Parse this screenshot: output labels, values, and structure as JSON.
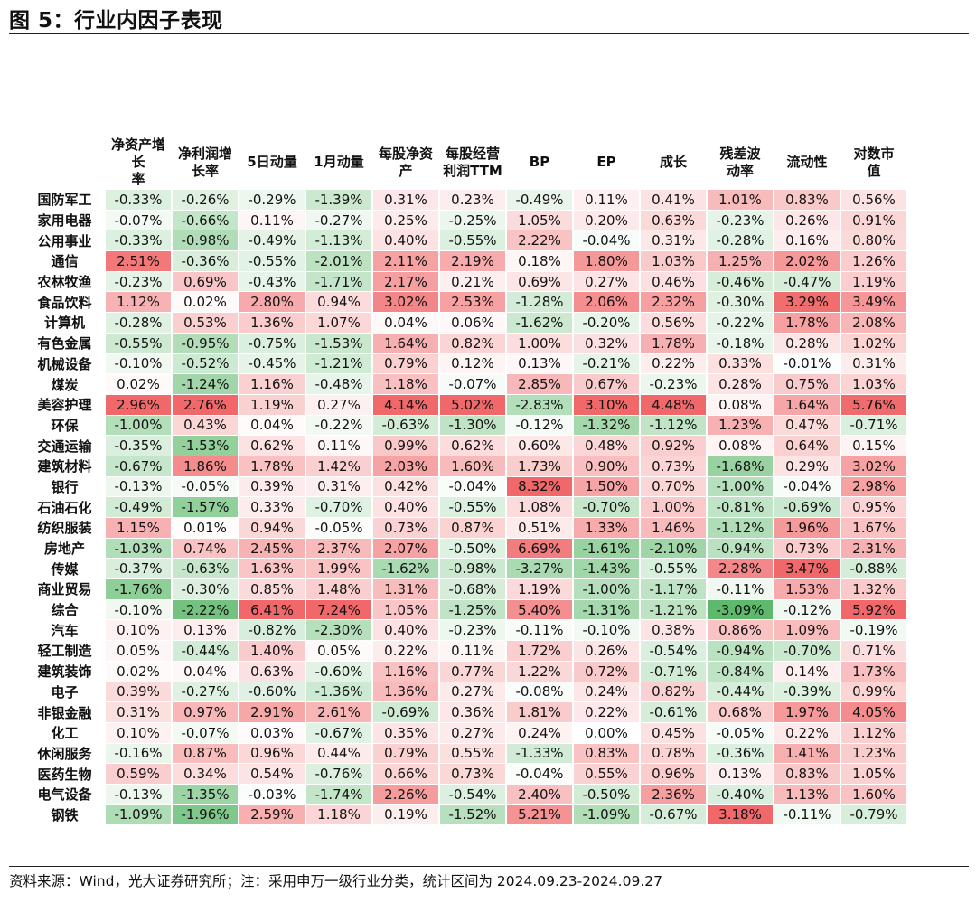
{
  "title": "图 5：行业内因子表现",
  "source": "资料来源：Wind，光大证券研究所；注：采用申万一级行业分类，统计区间为 2024.09.23-2024.09.27",
  "chart_data": {
    "type": "heatmap",
    "columns": [
      [
        "净资产增长",
        "率"
      ],
      [
        "净利润增",
        "长率"
      ],
      [
        "5日动量"
      ],
      [
        "1月动量"
      ],
      [
        "每股净资",
        "产"
      ],
      [
        "每股经营",
        "利润TTM"
      ],
      [
        "BP"
      ],
      [
        "EP"
      ],
      [
        "成长"
      ],
      [
        "残差波",
        "动率"
      ],
      [
        "流动性"
      ],
      [
        "对数市",
        "值"
      ]
    ],
    "value_suffix": "%",
    "rows": [
      {
        "name": "国防军工",
        "values": [
          -0.33,
          -0.26,
          -0.29,
          -1.39,
          0.31,
          0.23,
          -0.49,
          0.11,
          0.41,
          1.01,
          0.83,
          0.56
        ]
      },
      {
        "name": "家用电器",
        "values": [
          -0.07,
          -0.66,
          0.11,
          -0.27,
          0.25,
          -0.25,
          1.05,
          0.2,
          0.63,
          -0.23,
          0.26,
          0.91
        ]
      },
      {
        "name": "公用事业",
        "values": [
          -0.33,
          -0.98,
          -0.49,
          -1.13,
          0.4,
          -0.55,
          2.22,
          -0.04,
          0.31,
          -0.28,
          0.16,
          0.8
        ]
      },
      {
        "name": "通信",
        "values": [
          2.51,
          -0.36,
          -0.55,
          -2.01,
          2.11,
          2.19,
          0.18,
          1.8,
          1.03,
          1.25,
          2.02,
          1.26
        ]
      },
      {
        "name": "农林牧渔",
        "values": [
          -0.23,
          0.69,
          -0.43,
          -1.71,
          2.17,
          0.21,
          0.69,
          0.27,
          0.46,
          -0.46,
          -0.47,
          1.19
        ]
      },
      {
        "name": "食品饮料",
        "values": [
          1.12,
          0.02,
          2.8,
          0.94,
          3.02,
          2.53,
          -1.28,
          2.06,
          2.32,
          -0.3,
          3.29,
          3.49
        ]
      },
      {
        "name": "计算机",
        "values": [
          -0.28,
          0.53,
          1.36,
          1.07,
          0.04,
          0.06,
          -1.62,
          -0.2,
          0.56,
          -0.22,
          1.78,
          2.08
        ]
      },
      {
        "name": "有色金属",
        "values": [
          -0.55,
          -0.95,
          -0.75,
          -1.53,
          1.64,
          0.82,
          1.0,
          0.32,
          1.78,
          -0.18,
          0.28,
          1.02
        ]
      },
      {
        "name": "机械设备",
        "values": [
          -0.1,
          -0.52,
          -0.45,
          -1.21,
          0.79,
          0.12,
          0.13,
          -0.21,
          0.22,
          0.33,
          -0.01,
          0.31
        ]
      },
      {
        "name": "煤炭",
        "values": [
          0.02,
          -1.24,
          1.16,
          -0.48,
          1.18,
          -0.07,
          2.85,
          0.67,
          -0.23,
          0.28,
          0.75,
          1.03
        ]
      },
      {
        "name": "美容护理",
        "values": [
          2.96,
          2.76,
          1.19,
          0.27,
          4.14,
          5.02,
          -2.83,
          3.1,
          4.48,
          0.08,
          1.64,
          5.76
        ]
      },
      {
        "name": "环保",
        "values": [
          -1.0,
          0.43,
          0.04,
          -0.22,
          -0.63,
          -1.3,
          -0.12,
          -1.32,
          -1.12,
          1.23,
          0.47,
          -0.71
        ]
      },
      {
        "name": "交通运输",
        "values": [
          -0.35,
          -1.53,
          0.62,
          0.11,
          0.99,
          0.62,
          0.6,
          0.48,
          0.92,
          0.08,
          0.64,
          0.15
        ]
      },
      {
        "name": "建筑材料",
        "values": [
          -0.67,
          1.86,
          1.78,
          1.42,
          2.03,
          1.6,
          1.73,
          0.9,
          0.73,
          -1.68,
          0.29,
          3.02
        ]
      },
      {
        "name": "银行",
        "values": [
          -0.13,
          -0.05,
          0.39,
          0.31,
          0.42,
          -0.04,
          8.32,
          1.5,
          0.7,
          -1.0,
          -0.04,
          2.98
        ]
      },
      {
        "name": "石油石化",
        "values": [
          -0.49,
          -1.57,
          0.33,
          -0.7,
          0.4,
          -0.55,
          1.08,
          -0.7,
          1.0,
          -0.81,
          -0.69,
          0.95
        ]
      },
      {
        "name": "纺织服装",
        "values": [
          1.15,
          0.01,
          0.94,
          -0.05,
          0.73,
          0.87,
          0.51,
          1.33,
          1.46,
          -1.12,
          1.96,
          1.67
        ]
      },
      {
        "name": "房地产",
        "values": [
          -1.03,
          0.74,
          2.45,
          2.37,
          2.07,
          -0.5,
          6.69,
          -1.61,
          -2.1,
          -0.94,
          0.73,
          2.31
        ]
      },
      {
        "name": "传媒",
        "values": [
          -0.37,
          -0.63,
          1.63,
          1.99,
          -1.62,
          -0.98,
          -3.27,
          -1.43,
          -0.55,
          2.28,
          3.47,
          -0.88
        ]
      },
      {
        "name": "商业贸易",
        "values": [
          -1.76,
          -0.3,
          0.85,
          1.48,
          1.31,
          -0.68,
          1.19,
          -1.0,
          -1.17,
          -0.11,
          1.53,
          1.32
        ]
      },
      {
        "name": "综合",
        "values": [
          -0.1,
          -2.22,
          6.41,
          7.24,
          1.05,
          -1.25,
          5.4,
          -1.31,
          -1.21,
          -3.09,
          -0.12,
          5.92
        ]
      },
      {
        "name": "汽车",
        "values": [
          0.1,
          0.13,
          -0.82,
          -2.3,
          0.4,
          -0.23,
          -0.11,
          -0.1,
          0.38,
          0.86,
          1.09,
          -0.19
        ]
      },
      {
        "name": "轻工制造",
        "values": [
          0.05,
          -0.44,
          1.4,
          0.05,
          0.22,
          0.11,
          1.72,
          0.26,
          -0.54,
          -0.94,
          -0.7,
          0.71
        ]
      },
      {
        "name": "建筑装饰",
        "values": [
          0.02,
          0.04,
          0.63,
          -0.6,
          1.16,
          0.77,
          1.22,
          0.72,
          -0.71,
          -0.84,
          0.14,
          1.73
        ]
      },
      {
        "name": "电子",
        "values": [
          0.39,
          -0.27,
          -0.6,
          -1.36,
          1.36,
          0.27,
          -0.08,
          0.24,
          0.82,
          -0.44,
          -0.39,
          0.99
        ]
      },
      {
        "name": "非银金融",
        "values": [
          0.31,
          0.97,
          2.91,
          2.61,
          -0.69,
          0.36,
          1.81,
          0.22,
          -0.61,
          0.68,
          1.97,
          4.05
        ]
      },
      {
        "name": "化工",
        "values": [
          0.1,
          -0.07,
          0.03,
          -0.67,
          0.35,
          0.27,
          0.24,
          0.0,
          0.45,
          -0.05,
          0.22,
          1.12
        ]
      },
      {
        "name": "休闲服务",
        "values": [
          -0.16,
          0.87,
          0.96,
          0.44,
          0.79,
          0.55,
          -1.33,
          0.83,
          0.78,
          -0.36,
          1.41,
          1.23
        ]
      },
      {
        "name": "医药生物",
        "values": [
          0.59,
          0.34,
          0.54,
          -0.76,
          0.66,
          0.73,
          -0.04,
          0.55,
          0.96,
          0.13,
          0.83,
          1.05
        ]
      },
      {
        "name": "电气设备",
        "values": [
          -0.13,
          -1.35,
          -0.03,
          -1.74,
          2.26,
          -0.54,
          2.4,
          -0.5,
          2.36,
          -0.4,
          1.13,
          1.6
        ]
      },
      {
        "name": "钢铁",
        "values": [
          -1.09,
          -1.96,
          2.59,
          1.18,
          0.19,
          -1.52,
          5.21,
          -1.09,
          -0.67,
          3.18,
          -0.11,
          -0.79
        ]
      }
    ],
    "color_scale": {
      "negative": "#5cb86a",
      "neutral": "#ffffff",
      "positive": "#f0686a",
      "scope": "per-column"
    }
  }
}
